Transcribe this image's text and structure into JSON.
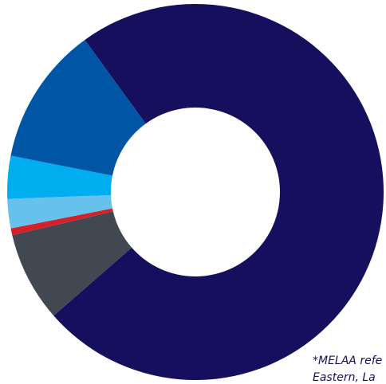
{
  "chart_data": {
    "type": "pie",
    "donut": true,
    "title": "",
    "slices": [
      {
        "value": 76.0,
        "color": "#150f5e"
      },
      {
        "value": 8.0,
        "color": "#414851"
      },
      {
        "value": 0.6,
        "color": "#d62028"
      },
      {
        "value": 2.6,
        "color": "#66c2ec"
      },
      {
        "value": 3.8,
        "color": "#00aeef"
      },
      {
        "value": 12.3,
        "color": "#0056a4"
      }
    ],
    "legend": "none"
  },
  "footnote": {
    "line1": "*MELAA refe",
    "line2": "Eastern, La"
  }
}
